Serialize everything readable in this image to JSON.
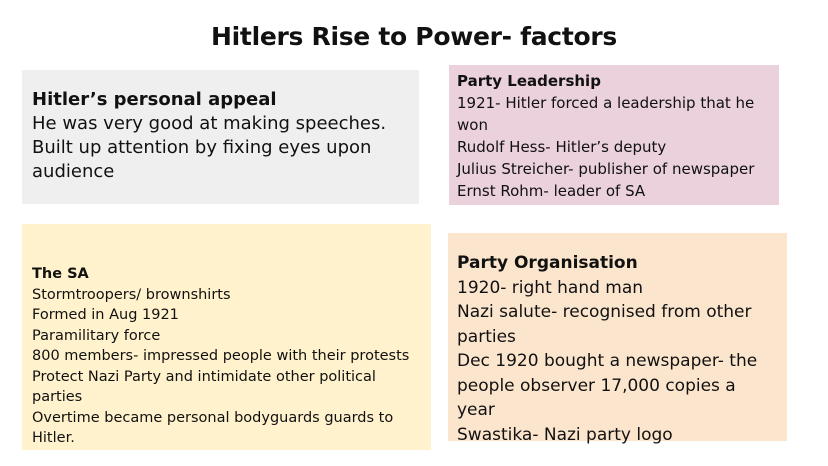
{
  "title": "Hitlers Rise to Power- factors",
  "boxes": {
    "appeal": {
      "heading": "Hitler’s personal appeal",
      "lines": [
        "He was very good at making speeches.",
        "Built up attention by fixing eyes upon",
        "audience"
      ]
    },
    "leadership": {
      "heading": "Party Leadership",
      "lines": [
        "1921- Hitler forced a leadership that he",
        "won",
        "Rudolf Hess- Hitler’s deputy",
        "Julius Streicher- publisher of newspaper",
        "Ernst Rohm- leader of SA"
      ]
    },
    "sa": {
      "heading": "The SA",
      "lines": [
        "Stormtroopers/ brownshirts",
        "Formed in Aug 1921",
        "Paramilitary force",
        "800 members- impressed people with their protests",
        "Protect Nazi Party and intimidate other political parties",
        "Overtime became personal bodyguards guards to",
        "Hitler."
      ]
    },
    "organisation": {
      "heading": "Party Organisation",
      "lines": [
        "1920- right hand man",
        "Nazi salute- recognised from other",
        "parties",
        "Dec 1920 bought a newspaper- the",
        "people observer 17,000 copies a year",
        "Swastika- Nazi party logo"
      ]
    }
  }
}
